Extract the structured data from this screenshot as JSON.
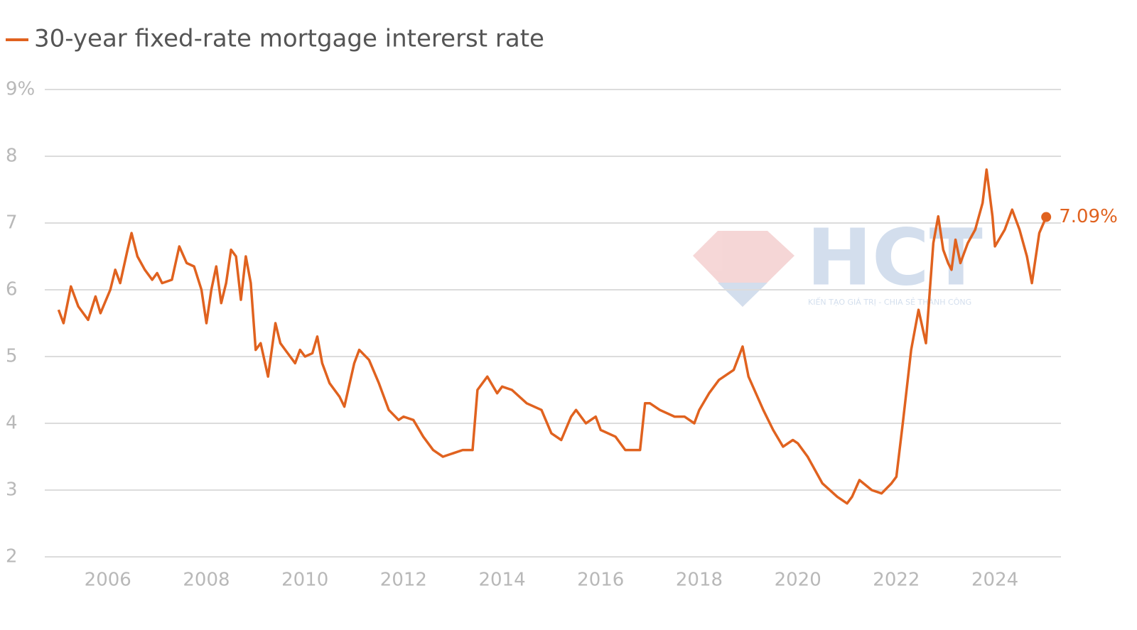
{
  "chart_data": {
    "type": "line",
    "title": "30-year fixed-rate mortgage intererst rate",
    "annotation": "7.09%",
    "watermark": "HCT",
    "watermark_tagline": "KIẾN TẠO GIÁ TRỊ - CHIA SẺ THÀNH CÔNG",
    "grid": true,
    "xlim": [
      2004.72,
      2025.34
    ],
    "xticks": [
      2006,
      2008,
      2010,
      2012,
      2014,
      2016,
      2018,
      2020,
      2022,
      2024
    ],
    "ylim": [
      2,
      9
    ],
    "yticks": [
      2,
      3,
      4,
      5,
      6,
      7,
      8,
      {
        "value": 9,
        "label": "9%"
      }
    ],
    "x": [
      2005.0,
      2005.1,
      2005.25,
      2005.4,
      2005.6,
      2005.75,
      2005.85,
      2006.05,
      2006.15,
      2006.25,
      2006.4,
      2006.48,
      2006.6,
      2006.75,
      2006.9,
      2007.0,
      2007.1,
      2007.3,
      2007.45,
      2007.6,
      2007.75,
      2007.9,
      2008.0,
      2008.1,
      2008.2,
      2008.3,
      2008.4,
      2008.5,
      2008.6,
      2008.7,
      2008.8,
      2008.9,
      2009.0,
      2009.1,
      2009.25,
      2009.4,
      2009.5,
      2009.6,
      2009.8,
      2009.9,
      2010.0,
      2010.15,
      2010.25,
      2010.35,
      2010.5,
      2010.7,
      2010.8,
      2011.0,
      2011.1,
      2011.3,
      2011.5,
      2011.7,
      2011.9,
      2012.0,
      2012.2,
      2012.4,
      2012.6,
      2012.8,
      2013.0,
      2013.2,
      2013.4,
      2013.5,
      2013.7,
      2013.9,
      2014.0,
      2014.2,
      2014.5,
      2014.8,
      2015.0,
      2015.2,
      2015.4,
      2015.5,
      2015.7,
      2015.9,
      2016.0,
      2016.3,
      2016.5,
      2016.8,
      2016.9,
      2017.0,
      2017.2,
      2017.5,
      2017.7,
      2017.9,
      2018.0,
      2018.2,
      2018.4,
      2018.7,
      2018.88,
      2019.0,
      2019.3,
      2019.5,
      2019.7,
      2019.9,
      2020.0,
      2020.2,
      2020.5,
      2020.8,
      2021.0,
      2021.1,
      2021.25,
      2021.5,
      2021.7,
      2021.9,
      2022.0,
      2022.13,
      2022.3,
      2022.45,
      2022.6,
      2022.75,
      2022.85,
      2022.95,
      2023.05,
      2023.12,
      2023.2,
      2023.3,
      2023.45,
      2023.6,
      2023.75,
      2023.83,
      2023.95,
      2024.0,
      2024.2,
      2024.35,
      2024.5,
      2024.65,
      2024.75,
      2024.9,
      2025.04
    ],
    "series": [
      {
        "name": "30-year fixed-rate mortgage intererst rate",
        "color": "#e0621f",
        "values": [
          5.7,
          5.5,
          6.05,
          5.75,
          5.55,
          5.9,
          5.65,
          6.0,
          6.3,
          6.1,
          6.6,
          6.85,
          6.5,
          6.3,
          6.15,
          6.25,
          6.1,
          6.15,
          6.65,
          6.4,
          6.35,
          6.0,
          5.5,
          6.0,
          6.35,
          5.8,
          6.1,
          6.6,
          6.5,
          5.85,
          6.5,
          6.1,
          5.1,
          5.2,
          4.7,
          5.5,
          5.2,
          5.1,
          4.9,
          5.1,
          5.0,
          5.05,
          5.3,
          4.9,
          4.6,
          4.4,
          4.25,
          4.9,
          5.1,
          4.95,
          4.6,
          4.2,
          4.05,
          4.1,
          4.05,
          3.8,
          3.6,
          3.5,
          3.55,
          3.6,
          3.6,
          4.5,
          4.7,
          4.45,
          4.55,
          4.5,
          4.3,
          4.2,
          3.85,
          3.75,
          4.1,
          4.2,
          4.0,
          4.1,
          3.9,
          3.8,
          3.6,
          3.6,
          4.3,
          4.3,
          4.2,
          4.1,
          4.1,
          4.0,
          4.2,
          4.45,
          4.65,
          4.8,
          5.15,
          4.7,
          4.2,
          3.9,
          3.65,
          3.75,
          3.7,
          3.5,
          3.1,
          2.9,
          2.8,
          2.9,
          3.15,
          3.0,
          2.95,
          3.1,
          3.2,
          4.0,
          5.1,
          5.7,
          5.2,
          6.7,
          7.1,
          6.6,
          6.4,
          6.3,
          6.75,
          6.4,
          6.7,
          6.9,
          7.3,
          7.8,
          7.1,
          6.65,
          6.9,
          7.2,
          6.9,
          6.5,
          6.1,
          6.85,
          7.09
        ]
      }
    ]
  }
}
